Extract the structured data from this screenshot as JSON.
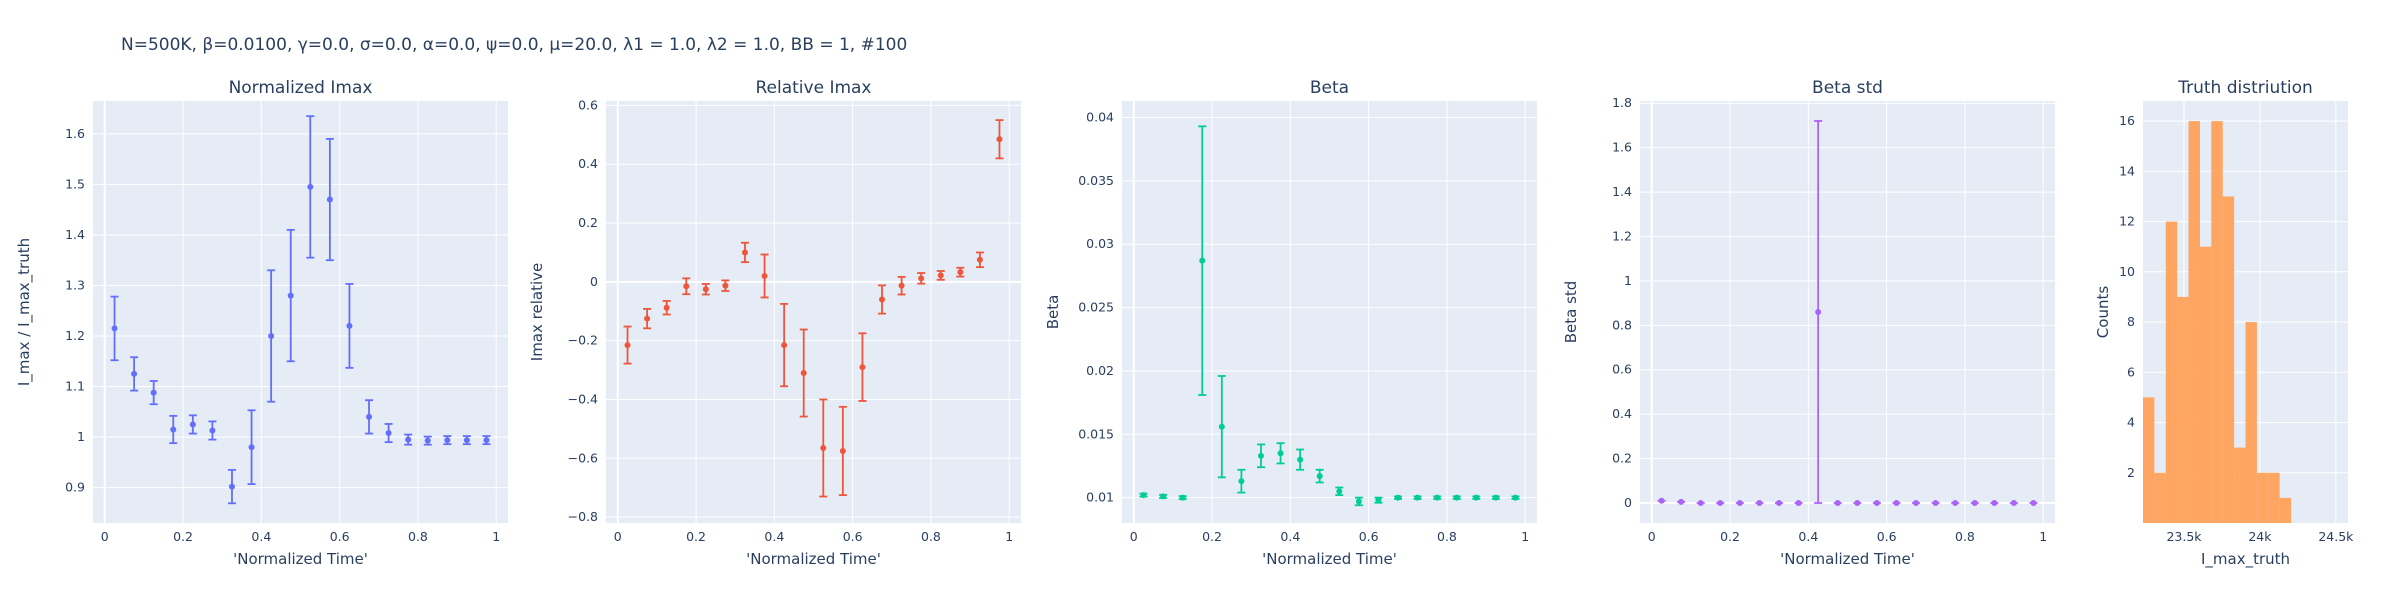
{
  "figure_title": "N=500K, β=0.0100, γ=0.0, σ=0.0,  α=0.0, ψ=0.0, μ=20.0, λ1 = 1.0, λ2 = 1.0, BB = 1, #100",
  "colors": {
    "plot_bg": "#E5ECF6",
    "grid": "#ffffff",
    "text": "#2a3f5f",
    "series": [
      "#636EFA",
      "#EF553B",
      "#00CC96",
      "#AB63FA",
      "#FFA15A"
    ]
  },
  "chart_data": [
    {
      "type": "scatter",
      "title": "Normalized Imax",
      "xlabel": "'Normalized Time'",
      "ylabel": "I_max / I_max_truth",
      "xlim": [
        -0.03,
        1.03
      ],
      "ylim": [
        0.83,
        1.665
      ],
      "xticks": [
        0,
        0.2,
        0.4,
        0.6,
        0.8,
        1
      ],
      "xticklabels": [
        "0",
        "0.2",
        "0.4",
        "0.6",
        "0.8",
        "1"
      ],
      "yticks": [
        0.9,
        1,
        1.1,
        1.2,
        1.3,
        1.4,
        1.5,
        1.6
      ],
      "yticklabels": [
        "0.9",
        "1",
        "1.1",
        "1.2",
        "1.3",
        "1.4",
        "1.5",
        "1.6"
      ],
      "grid": true,
      "x": [
        0.025,
        0.075,
        0.125,
        0.175,
        0.225,
        0.275,
        0.325,
        0.375,
        0.425,
        0.475,
        0.525,
        0.575,
        0.625,
        0.675,
        0.725,
        0.775,
        0.825,
        0.875,
        0.925,
        0.975
      ],
      "y": [
        1.215,
        1.125,
        1.088,
        1.015,
        1.025,
        1.013,
        0.902,
        0.98,
        1.2,
        1.28,
        1.495,
        1.47,
        1.22,
        1.04,
        1.008,
        0.995,
        0.993,
        0.994,
        0.994,
        0.994
      ],
      "err": [
        0.063,
        0.033,
        0.023,
        0.027,
        0.018,
        0.018,
        0.033,
        0.073,
        0.13,
        0.13,
        0.14,
        0.12,
        0.083,
        0.033,
        0.018,
        0.01,
        0.008,
        0.008,
        0.008,
        0.008
      ]
    },
    {
      "type": "scatter",
      "title": "Relative Imax",
      "xlabel": "'Normalized Time'",
      "ylabel": "Imax relative",
      "xlim": [
        -0.03,
        1.03
      ],
      "ylim": [
        -0.82,
        0.615
      ],
      "xticks": [
        0,
        0.2,
        0.4,
        0.6,
        0.8,
        1
      ],
      "xticklabels": [
        "0",
        "0.2",
        "0.4",
        "0.6",
        "0.8",
        "1"
      ],
      "yticks": [
        -0.8,
        -0.6,
        -0.4,
        -0.2,
        0,
        0.2,
        0.4,
        0.6
      ],
      "yticklabels": [
        "−0.8",
        "−0.6",
        "−0.4",
        "−0.2",
        "0",
        "0.2",
        "0.4",
        "0.6"
      ],
      "grid": true,
      "x": [
        0.025,
        0.075,
        0.125,
        0.175,
        0.225,
        0.275,
        0.325,
        0.375,
        0.425,
        0.475,
        0.525,
        0.575,
        0.625,
        0.675,
        0.725,
        0.775,
        0.825,
        0.875,
        0.925,
        0.975
      ],
      "y": [
        -0.215,
        -0.125,
        -0.088,
        -0.015,
        -0.025,
        -0.013,
        0.1,
        0.02,
        -0.215,
        -0.31,
        -0.565,
        -0.575,
        -0.29,
        -0.06,
        -0.013,
        0.012,
        0.022,
        0.033,
        0.075,
        0.485
      ],
      "err": [
        0.063,
        0.033,
        0.023,
        0.027,
        0.018,
        0.018,
        0.033,
        0.073,
        0.14,
        0.148,
        0.165,
        0.15,
        0.115,
        0.048,
        0.03,
        0.018,
        0.015,
        0.015,
        0.025,
        0.065
      ]
    },
    {
      "type": "scatter",
      "title": "Beta",
      "xlabel": "'Normalized Time'",
      "ylabel": "Beta",
      "xlim": [
        -0.03,
        1.03
      ],
      "ylim": [
        0.008,
        0.0413
      ],
      "xticks": [
        0,
        0.2,
        0.4,
        0.6,
        0.8,
        1
      ],
      "xticklabels": [
        "0",
        "0.2",
        "0.4",
        "0.6",
        "0.8",
        "1"
      ],
      "yticks": [
        0.01,
        0.015,
        0.02,
        0.025,
        0.03,
        0.035,
        0.04
      ],
      "yticklabels": [
        "0.01",
        "0.015",
        "0.02",
        "0.025",
        "0.03",
        "0.035",
        "0.04"
      ],
      "grid": true,
      "x": [
        0.025,
        0.075,
        0.125,
        0.175,
        0.225,
        0.275,
        0.325,
        0.375,
        0.425,
        0.475,
        0.525,
        0.575,
        0.625,
        0.675,
        0.725,
        0.775,
        0.825,
        0.875,
        0.925,
        0.975
      ],
      "y": [
        0.0102,
        0.0101,
        0.01,
        0.0287,
        0.0156,
        0.0113,
        0.0133,
        0.0135,
        0.013,
        0.0117,
        0.0105,
        0.0097,
        0.0098,
        0.01,
        0.01,
        0.01,
        0.01,
        0.01,
        0.01,
        0.01
      ],
      "err": [
        0.00012,
        0.00012,
        0.00012,
        0.0106,
        0.004,
        0.0009,
        0.0009,
        0.0008,
        0.0008,
        0.0005,
        0.0003,
        0.0003,
        0.0002,
        0.0001,
        0.0001,
        0.0001,
        0.0001,
        0.0001,
        0.0001,
        0.0001
      ]
    },
    {
      "type": "scatter",
      "title": "Beta std",
      "xlabel": "'Normalized Time'",
      "ylabel": "Beta std",
      "xlim": [
        -0.03,
        1.03
      ],
      "ylim": [
        -0.09,
        1.81
      ],
      "xticks": [
        0,
        0.2,
        0.4,
        0.6,
        0.8,
        1
      ],
      "xticklabels": [
        "0",
        "0.2",
        "0.4",
        "0.6",
        "0.8",
        "1"
      ],
      "yticks": [
        0,
        0.2,
        0.4,
        0.6,
        0.8,
        1,
        1.2,
        1.4,
        1.6,
        1.8
      ],
      "yticklabels": [
        "0",
        "0.2",
        "0.4",
        "0.6",
        "0.8",
        "1",
        "1.2",
        "1.4",
        "1.6",
        "1.8"
      ],
      "grid": true,
      "x": [
        0.025,
        0.075,
        0.125,
        0.175,
        0.225,
        0.275,
        0.325,
        0.375,
        0.425,
        0.475,
        0.525,
        0.575,
        0.625,
        0.675,
        0.725,
        0.775,
        0.825,
        0.875,
        0.925,
        0.975
      ],
      "y": [
        0.01,
        0.005,
        0,
        0,
        0,
        0,
        0,
        0,
        0.86,
        0,
        0,
        0,
        0,
        0,
        0,
        0,
        0,
        0,
        0,
        0
      ],
      "err": [
        0,
        0,
        0,
        0,
        0,
        0,
        0,
        0,
        0.86,
        0,
        0,
        0,
        0,
        0,
        0,
        0,
        0,
        0,
        0,
        0
      ]
    },
    {
      "type": "bar",
      "title": "Truth distriution",
      "xlabel": "I_max_truth",
      "ylabel": "Counts",
      "xlim": [
        23230,
        24580
      ],
      "ylim": [
        0,
        16.8
      ],
      "xticks": [
        23500,
        24000,
        24500
      ],
      "xticklabels": [
        "23.5k",
        "24k",
        "24.5k"
      ],
      "yticks": [
        2,
        4,
        6,
        8,
        10,
        12,
        14,
        16
      ],
      "yticklabels": [
        "2",
        "4",
        "6",
        "8",
        "10",
        "12",
        "14",
        "16"
      ],
      "grid": true,
      "bin_edges": [
        23230,
        23305,
        23380,
        23455,
        23530,
        23605,
        23680,
        23755,
        23830,
        23905,
        23980,
        24055,
        24130,
        24205,
        24280,
        24355,
        24430,
        24505,
        24580
      ],
      "values": [
        5,
        2,
        12,
        9,
        16,
        11,
        16,
        13,
        3,
        8,
        2,
        2,
        1,
        0,
        0,
        0,
        0,
        0
      ]
    }
  ]
}
